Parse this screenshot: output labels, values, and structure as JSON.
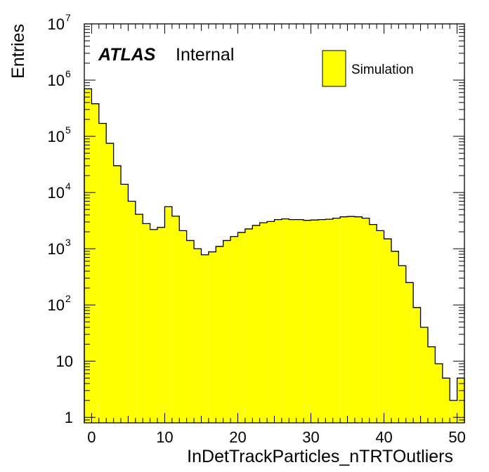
{
  "chart_data": {
    "type": "bar",
    "histogram": true,
    "xlabel": "InDetTrackParticles_nTRTOutliers",
    "ylabel": "Entries",
    "experiment_label": "ATLAS",
    "status_label": "Internal",
    "legend": [
      {
        "name": "Simulation",
        "color": "#ffff00"
      }
    ],
    "legend_position": "top-right",
    "bar_color": "#ffff00",
    "line_color": "#000000",
    "xlim": [
      -1,
      51
    ],
    "ylim": [
      0.8,
      10000000
    ],
    "log_y": true,
    "grid": false,
    "x_ticks": [
      "0",
      "10",
      "20",
      "30",
      "40",
      "50"
    ],
    "y_ticks": [
      {
        "value": 1,
        "base": "1",
        "exp": ""
      },
      {
        "value": 10,
        "base": "10",
        "exp": ""
      },
      {
        "value": 100,
        "base": "10",
        "exp": "2"
      },
      {
        "value": 1000,
        "base": "10",
        "exp": "3"
      },
      {
        "value": 10000,
        "base": "10",
        "exp": "4"
      },
      {
        "value": 100000,
        "base": "10",
        "exp": "5"
      },
      {
        "value": 1000000,
        "base": "10",
        "exp": "6"
      },
      {
        "value": 10000000,
        "base": "10",
        "exp": "7"
      }
    ],
    "bin_edges": [
      -1,
      0,
      1,
      2,
      3,
      4,
      5,
      6,
      7,
      8,
      9,
      10,
      11,
      12,
      13,
      14,
      15,
      16,
      17,
      18,
      19,
      20,
      21,
      22,
      23,
      24,
      25,
      26,
      27,
      28,
      29,
      30,
      31,
      32,
      33,
      34,
      35,
      36,
      37,
      38,
      39,
      40,
      41,
      42,
      43,
      44,
      45,
      46,
      47,
      48,
      49,
      50,
      51
    ],
    "values": [
      700000,
      380000,
      170000,
      75000,
      30000,
      14000,
      7000,
      4100,
      2800,
      2200,
      2400,
      5600,
      3800,
      2100,
      1400,
      1000,
      780,
      880,
      1100,
      1400,
      1650,
      1950,
      2250,
      2600,
      2900,
      3050,
      3300,
      3400,
      3300,
      3300,
      3200,
      3250,
      3300,
      3350,
      3500,
      3700,
      3750,
      3700,
      3500,
      2700,
      2100,
      1500,
      900,
      500,
      250,
      90,
      40,
      18,
      9,
      5,
      2,
      5
    ]
  }
}
